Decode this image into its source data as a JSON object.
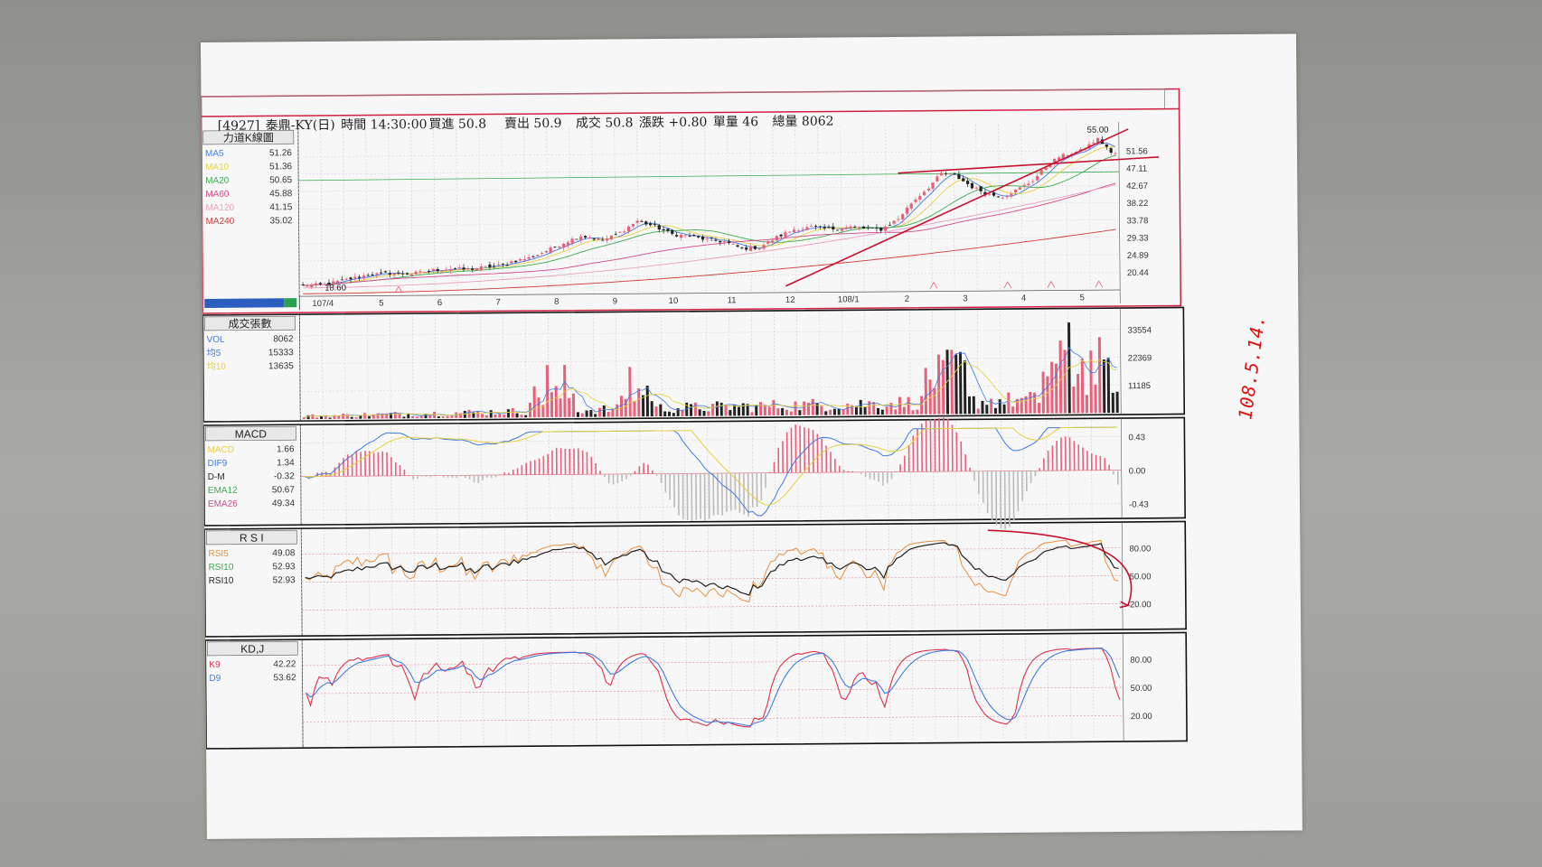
{
  "header": {
    "code": "[4927]",
    "name": "泰鼎-KY(日)",
    "time": "時間 14:30:00",
    "bid": "買進 50.8",
    "ask": "賣出 50.9",
    "deal": "成交 50.8",
    "change": "漲跌 +0.80",
    "single_vol": "單量 46",
    "total_vol": "總量 8062"
  },
  "annotation": "108.5.14.",
  "colors": {
    "up": "#e8607a",
    "down": "#222222",
    "ma5": "#3f7be0",
    "ma10": "#e6d040",
    "ma20": "#3aaa50",
    "ma60": "#d04a8a",
    "ma120": "#e8a0c0",
    "ma240": "#d03a3a",
    "trend": "#c8102e"
  },
  "chart_data": [
    {
      "type": "line",
      "title": "力道K線圖",
      "x_ticks": [
        "107/4",
        "5",
        "6",
        "7",
        "8",
        "9",
        "10",
        "11",
        "12",
        "108/1",
        "2",
        "3",
        "4",
        "5"
      ],
      "y_ticks": [
        "51.56",
        "47.11",
        "42.67",
        "38.22",
        "33.78",
        "29.33",
        "24.89",
        "20.44"
      ],
      "ylim": [
        17,
        57
      ],
      "legend": [
        {
          "name": "MA5",
          "value": "51.26",
          "color": "#3f7be0"
        },
        {
          "name": "MA10",
          "value": "51.36",
          "color": "#e6d040"
        },
        {
          "name": "MA20",
          "value": "50.65",
          "color": "#3aaa50"
        },
        {
          "name": "MA60",
          "value": "45.88",
          "color": "#d04a8a"
        },
        {
          "name": "MA120",
          "value": "41.15",
          "color": "#e8a0c0"
        },
        {
          "name": "MA240",
          "value": "35.02",
          "color": "#d03a3a"
        }
      ],
      "annotations": [
        "55.00",
        "18.60"
      ],
      "close_path": [
        [
          0,
          18.6
        ],
        [
          5,
          18.8
        ],
        [
          10,
          20
        ],
        [
          15,
          21.2
        ],
        [
          20,
          21.6
        ],
        [
          25,
          21.4
        ],
        [
          30,
          22.3
        ],
        [
          33,
          22.6
        ],
        [
          38,
          22.4
        ],
        [
          41,
          22.8
        ],
        [
          46,
          23.5
        ],
        [
          48,
          24.3
        ],
        [
          52,
          25.2
        ],
        [
          56,
          27.0
        ],
        [
          60,
          29.0
        ],
        [
          64,
          30.8
        ],
        [
          69,
          29.5
        ],
        [
          73,
          31.5
        ],
        [
          77,
          34.5
        ],
        [
          81,
          33.0
        ],
        [
          85,
          31.0
        ],
        [
          89,
          30.5
        ],
        [
          93,
          29.5
        ],
        [
          97,
          29.0
        ],
        [
          101,
          27.2
        ],
        [
          105,
          27.5
        ],
        [
          109,
          30.0
        ],
        [
          113,
          32.0
        ],
        [
          117,
          32.5
        ],
        [
          121,
          32.0
        ],
        [
          126,
          32.5
        ],
        [
          130,
          32.0
        ],
        [
          133,
          31.8
        ],
        [
          137,
          34.5
        ],
        [
          140,
          38.5
        ],
        [
          144,
          42.5
        ],
        [
          147,
          46.0
        ],
        [
          150,
          45.5
        ],
        [
          154,
          42.5
        ],
        [
          158,
          40.5
        ],
        [
          161,
          40.0
        ],
        [
          164,
          41.5
        ],
        [
          168,
          44.0
        ],
        [
          171,
          47.5
        ],
        [
          174,
          50.0
        ],
        [
          177,
          51.0
        ],
        [
          179,
          51.5
        ],
        [
          181,
          53.0
        ],
        [
          183,
          54.5
        ],
        [
          185,
          52.5
        ],
        [
          186,
          50.8
        ]
      ]
    },
    {
      "type": "bar",
      "title": "成交張數",
      "y_ticks": [
        "33554",
        "22369",
        "11185"
      ],
      "legend": [
        {
          "name": "VOL",
          "value": "8062",
          "color": "#3f7be0"
        },
        {
          "name": "均5",
          "value": "15333",
          "color": "#3f7be0"
        },
        {
          "name": "均10",
          "value": "13635",
          "color": "#e6d040"
        }
      ],
      "ylim": [
        0,
        40000
      ]
    },
    {
      "type": "line",
      "title": "MACD",
      "y_ticks": [
        "0.43",
        "0.00",
        "-0.43"
      ],
      "legend": [
        {
          "name": "MACD",
          "value": "1.66",
          "color": "#e6d040"
        },
        {
          "name": "DIF9",
          "value": "1.34",
          "color": "#3f7be0"
        },
        {
          "name": "D-M",
          "value": "-0.32",
          "color": "#222222"
        },
        {
          "name": "EMA12",
          "value": "50.67",
          "color": "#3aaa50"
        },
        {
          "name": "EMA26",
          "value": "49.34",
          "color": "#d04a8a"
        }
      ]
    },
    {
      "type": "line",
      "title": "R S I",
      "y_ticks": [
        "80.00",
        "50.00",
        "20.00"
      ],
      "legend": [
        {
          "name": "RSI5",
          "value": "49.08",
          "color": "#e89040"
        },
        {
          "name": "RSI10",
          "value": "52.93",
          "color": "#3aaa50"
        },
        {
          "name": "RSI10",
          "value": "52.93",
          "color": "#222222"
        }
      ],
      "ylim": [
        0,
        100
      ]
    },
    {
      "type": "line",
      "title": "KD,J",
      "y_ticks": [
        "80.00",
        "50.00",
        "20.00"
      ],
      "legend": [
        {
          "name": "K9",
          "value": "42.22",
          "color": "#e03050"
        },
        {
          "name": "D9",
          "value": "53.62",
          "color": "#3f7be0"
        }
      ],
      "ylim": [
        0,
        100
      ]
    }
  ]
}
